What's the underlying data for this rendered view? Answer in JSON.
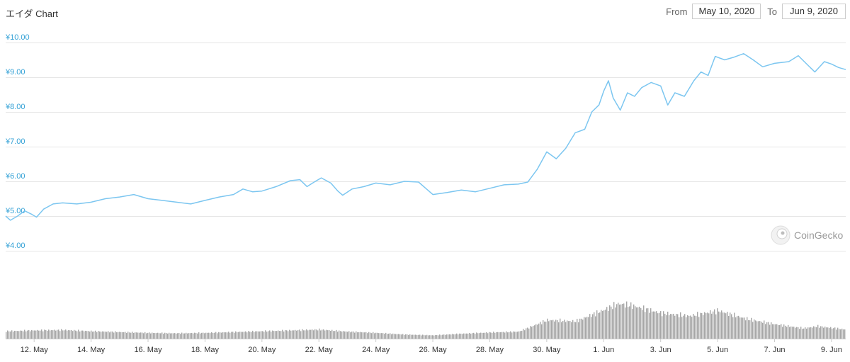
{
  "chart": {
    "title": "エイダ Chart"
  },
  "range": {
    "from_label": "From",
    "from_value": "May 10, 2020",
    "to_label": "To",
    "to_value": "Jun 9, 2020"
  },
  "watermark": {
    "text": "CoinGecko",
    "icon": "gecko-logo-icon"
  },
  "colors": {
    "price_line": "#7cc6f0",
    "y_labels": "#33a1d6",
    "volume_bars": "#a6a6a6",
    "grid": "#e6e6e6"
  },
  "chart_data": {
    "type": "line",
    "title": "エイダ Chart",
    "y_axis": {
      "ticks": [
        {
          "value": 4,
          "label": "¥4.00"
        },
        {
          "value": 5,
          "label": "¥5.00"
        },
        {
          "value": 6,
          "label": "¥6.00"
        },
        {
          "value": 7,
          "label": "¥7.00"
        },
        {
          "value": 8,
          "label": "¥8.00"
        },
        {
          "value": 9,
          "label": "¥9.00"
        },
        {
          "value": 10,
          "label": "¥10.00"
        }
      ],
      "ylim": [
        4,
        10
      ]
    },
    "x_axis": {
      "start": "2020-05-11",
      "end": "2020-06-09T12:00",
      "ticks": [
        {
          "date": "2020-05-12",
          "label": "12. May"
        },
        {
          "date": "2020-05-14",
          "label": "14. May"
        },
        {
          "date": "2020-05-16",
          "label": "16. May"
        },
        {
          "date": "2020-05-18",
          "label": "18. May"
        },
        {
          "date": "2020-05-20",
          "label": "20. May"
        },
        {
          "date": "2020-05-22",
          "label": "22. May"
        },
        {
          "date": "2020-05-24",
          "label": "24. May"
        },
        {
          "date": "2020-05-26",
          "label": "26. May"
        },
        {
          "date": "2020-05-28",
          "label": "28. May"
        },
        {
          "date": "2020-05-30",
          "label": "30. May"
        },
        {
          "date": "2020-06-01",
          "label": "1. Jun"
        },
        {
          "date": "2020-06-03",
          "label": "3. Jun"
        },
        {
          "date": "2020-06-05",
          "label": "5. Jun"
        },
        {
          "date": "2020-06-07",
          "label": "7. Jun"
        },
        {
          "date": "2020-06-09",
          "label": "9. Jun"
        }
      ]
    },
    "grid": true,
    "legend": false,
    "series": [
      {
        "kind": "price",
        "points": [
          [
            "2020-05-11T00:00",
            5.0
          ],
          [
            "2020-05-11T04:00",
            4.88
          ],
          [
            "2020-05-11T10:00",
            5.0
          ],
          [
            "2020-05-11T16:00",
            5.15
          ],
          [
            "2020-05-11T22:00",
            5.05
          ],
          [
            "2020-05-12T02:00",
            4.97
          ],
          [
            "2020-05-12T08:00",
            5.2
          ],
          [
            "2020-05-12T16:00",
            5.35
          ],
          [
            "2020-05-13T00:00",
            5.38
          ],
          [
            "2020-05-13T12:00",
            5.35
          ],
          [
            "2020-05-14T00:00",
            5.4
          ],
          [
            "2020-05-14T12:00",
            5.5
          ],
          [
            "2020-05-15T00:00",
            5.55
          ],
          [
            "2020-05-15T12:00",
            5.62
          ],
          [
            "2020-05-16T00:00",
            5.5
          ],
          [
            "2020-05-16T12:00",
            5.45
          ],
          [
            "2020-05-17T00:00",
            5.4
          ],
          [
            "2020-05-17T12:00",
            5.35
          ],
          [
            "2020-05-18T00:00",
            5.45
          ],
          [
            "2020-05-18T12:00",
            5.55
          ],
          [
            "2020-05-19T00:00",
            5.62
          ],
          [
            "2020-05-19T08:00",
            5.78
          ],
          [
            "2020-05-19T16:00",
            5.7
          ],
          [
            "2020-05-20T00:00",
            5.72
          ],
          [
            "2020-05-20T12:00",
            5.85
          ],
          [
            "2020-05-21T00:00",
            6.02
          ],
          [
            "2020-05-21T08:00",
            6.05
          ],
          [
            "2020-05-21T14:00",
            5.85
          ],
          [
            "2020-05-21T20:00",
            5.98
          ],
          [
            "2020-05-22T02:00",
            6.1
          ],
          [
            "2020-05-22T10:00",
            5.95
          ],
          [
            "2020-05-22T16:00",
            5.72
          ],
          [
            "2020-05-22T20:00",
            5.6
          ],
          [
            "2020-05-23T04:00",
            5.78
          ],
          [
            "2020-05-23T14:00",
            5.85
          ],
          [
            "2020-05-24T00:00",
            5.95
          ],
          [
            "2020-05-24T12:00",
            5.9
          ],
          [
            "2020-05-25T00:00",
            6.0
          ],
          [
            "2020-05-25T12:00",
            5.98
          ],
          [
            "2020-05-25T18:00",
            5.8
          ],
          [
            "2020-05-26T00:00",
            5.62
          ],
          [
            "2020-05-26T12:00",
            5.68
          ],
          [
            "2020-05-27T00:00",
            5.75
          ],
          [
            "2020-05-27T12:00",
            5.7
          ],
          [
            "2020-05-28T00:00",
            5.8
          ],
          [
            "2020-05-28T12:00",
            5.9
          ],
          [
            "2020-05-29T00:00",
            5.92
          ],
          [
            "2020-05-29T08:00",
            5.98
          ],
          [
            "2020-05-29T16:00",
            6.35
          ],
          [
            "2020-05-30T00:00",
            6.85
          ],
          [
            "2020-05-30T08:00",
            6.65
          ],
          [
            "2020-05-30T16:00",
            6.95
          ],
          [
            "2020-05-31T00:00",
            7.4
          ],
          [
            "2020-05-31T08:00",
            7.5
          ],
          [
            "2020-05-31T14:00",
            8.0
          ],
          [
            "2020-05-31T20:00",
            8.2
          ],
          [
            "2020-06-01T00:00",
            8.6
          ],
          [
            "2020-06-01T04:00",
            8.9
          ],
          [
            "2020-06-01T08:00",
            8.4
          ],
          [
            "2020-06-01T14:00",
            8.05
          ],
          [
            "2020-06-01T20:00",
            8.55
          ],
          [
            "2020-06-02T02:00",
            8.45
          ],
          [
            "2020-06-02T08:00",
            8.7
          ],
          [
            "2020-06-02T16:00",
            8.85
          ],
          [
            "2020-06-03T00:00",
            8.75
          ],
          [
            "2020-06-03T06:00",
            8.2
          ],
          [
            "2020-06-03T12:00",
            8.55
          ],
          [
            "2020-06-03T20:00",
            8.45
          ],
          [
            "2020-06-04T04:00",
            8.9
          ],
          [
            "2020-06-04T10:00",
            9.15
          ],
          [
            "2020-06-04T16:00",
            9.05
          ],
          [
            "2020-06-04T22:00",
            9.6
          ],
          [
            "2020-06-05T06:00",
            9.5
          ],
          [
            "2020-06-05T14:00",
            9.58
          ],
          [
            "2020-06-05T22:00",
            9.68
          ],
          [
            "2020-06-06T06:00",
            9.5
          ],
          [
            "2020-06-06T14:00",
            9.3
          ],
          [
            "2020-06-07T00:00",
            9.4
          ],
          [
            "2020-06-07T12:00",
            9.45
          ],
          [
            "2020-06-07T20:00",
            9.62
          ],
          [
            "2020-06-08T04:00",
            9.35
          ],
          [
            "2020-06-08T10:00",
            9.15
          ],
          [
            "2020-06-08T18:00",
            9.45
          ],
          [
            "2020-06-09T00:00",
            9.38
          ],
          [
            "2020-06-09T06:00",
            9.28
          ],
          [
            "2020-06-09T12:00",
            9.22
          ]
        ]
      },
      {
        "kind": "volume",
        "relative_points": [
          [
            "2020-05-11T00:00",
            0.18
          ],
          [
            "2020-05-12T00:00",
            0.2
          ],
          [
            "2020-05-13T00:00",
            0.21
          ],
          [
            "2020-05-14T00:00",
            0.18
          ],
          [
            "2020-05-15T00:00",
            0.16
          ],
          [
            "2020-05-16T00:00",
            0.14
          ],
          [
            "2020-05-17T00:00",
            0.13
          ],
          [
            "2020-05-18T00:00",
            0.14
          ],
          [
            "2020-05-19T00:00",
            0.16
          ],
          [
            "2020-05-20T00:00",
            0.18
          ],
          [
            "2020-05-21T00:00",
            0.2
          ],
          [
            "2020-05-22T00:00",
            0.22
          ],
          [
            "2020-05-23T00:00",
            0.17
          ],
          [
            "2020-05-24T00:00",
            0.14
          ],
          [
            "2020-05-25T00:00",
            0.1
          ],
          [
            "2020-05-26T00:00",
            0.08
          ],
          [
            "2020-05-27T00:00",
            0.12
          ],
          [
            "2020-05-28T00:00",
            0.15
          ],
          [
            "2020-05-29T00:00",
            0.17
          ],
          [
            "2020-05-30T00:00",
            0.45
          ],
          [
            "2020-05-31T00:00",
            0.42
          ],
          [
            "2020-06-01T00:00",
            0.7
          ],
          [
            "2020-06-01T12:00",
            0.85
          ],
          [
            "2020-06-02T00:00",
            0.8
          ],
          [
            "2020-06-03T00:00",
            0.62
          ],
          [
            "2020-06-04T00:00",
            0.55
          ],
          [
            "2020-06-05T00:00",
            0.68
          ],
          [
            "2020-06-06T00:00",
            0.48
          ],
          [
            "2020-06-07T00:00",
            0.35
          ],
          [
            "2020-06-08T00:00",
            0.25
          ],
          [
            "2020-06-08T12:00",
            0.3
          ],
          [
            "2020-06-09T12:00",
            0.22
          ]
        ]
      }
    ]
  }
}
